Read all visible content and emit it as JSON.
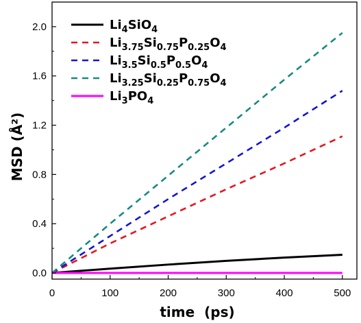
{
  "chart_data": {
    "type": "line",
    "xlabel": "time  (ps)",
    "ylabel": "MSD (Å²)",
    "xlim": [
      0,
      525
    ],
    "ylim": [
      -0.05,
      2.2
    ],
    "xticks": [
      0,
      100,
      200,
      300,
      400,
      500
    ],
    "yticks": [
      0.0,
      0.4,
      0.8,
      1.2,
      1.6,
      2.0
    ],
    "ytick_labels": [
      "0.0",
      "0.4",
      "0.8",
      "1.2",
      "1.6",
      "2.0"
    ],
    "grid": false,
    "legend_position": "top-left",
    "series": [
      {
        "name": "Li₄SiO₄",
        "legend_parts": [
          [
            "Li",
            ""
          ],
          [
            "4",
            "sub"
          ],
          [
            "SiO",
            ""
          ],
          [
            "4",
            "sub"
          ]
        ],
        "color": "#000000",
        "style": "solid",
        "x": [
          0,
          100,
          200,
          300,
          400,
          500
        ],
        "y": [
          0.0,
          0.035,
          0.068,
          0.098,
          0.125,
          0.148
        ]
      },
      {
        "name": "Li₃.₇₅Si₀.₇₅P₀.₂₅O₄",
        "legend_parts": [
          [
            "Li",
            ""
          ],
          [
            "3.75",
            "sub"
          ],
          [
            "Si",
            ""
          ],
          [
            "0.75",
            "sub"
          ],
          [
            "P",
            ""
          ],
          [
            "0.25",
            "sub"
          ],
          [
            "O",
            ""
          ],
          [
            "4",
            "sub"
          ]
        ],
        "color": "#e8141e",
        "style": "dashed",
        "x": [
          0,
          100,
          200,
          300,
          400,
          500
        ],
        "y": [
          0.0,
          0.24,
          0.46,
          0.68,
          0.89,
          1.11
        ]
      },
      {
        "name": "Li₃.₅Si₀.₅P₀.₅O₄",
        "legend_parts": [
          [
            "Li",
            ""
          ],
          [
            "3.5",
            "sub"
          ],
          [
            "Si",
            ""
          ],
          [
            "0.5",
            "sub"
          ],
          [
            "P",
            ""
          ],
          [
            "0.5",
            "sub"
          ],
          [
            "O",
            ""
          ],
          [
            "4",
            "sub"
          ]
        ],
        "color": "#1414d2",
        "style": "dashed",
        "x": [
          0,
          100,
          200,
          300,
          400,
          500
        ],
        "y": [
          0.0,
          0.3,
          0.6,
          0.89,
          1.18,
          1.48
        ]
      },
      {
        "name": "Li₃.₂₅Si₀.₂₅P₀.₇₅O₄",
        "legend_parts": [
          [
            "Li",
            ""
          ],
          [
            "3.25",
            "sub"
          ],
          [
            "Si",
            ""
          ],
          [
            "0.25",
            "sub"
          ],
          [
            "P",
            ""
          ],
          [
            "0.75",
            "sub"
          ],
          [
            "O",
            ""
          ],
          [
            "4",
            "sub"
          ]
        ],
        "color": "#168a82",
        "style": "dashed",
        "x": [
          0,
          100,
          200,
          300,
          400,
          500
        ],
        "y": [
          0.0,
          0.4,
          0.79,
          1.18,
          1.57,
          1.95
        ]
      },
      {
        "name": "Li₃PO₄",
        "legend_parts": [
          [
            "Li",
            ""
          ],
          [
            "3",
            "sub"
          ],
          [
            "PO",
            ""
          ],
          [
            "4",
            "sub"
          ]
        ],
        "color": "#ff00ff",
        "style": "solid",
        "x": [
          0,
          100,
          200,
          300,
          400,
          500
        ],
        "y": [
          0.0,
          0.0,
          0.0,
          0.0,
          0.0,
          0.0
        ]
      }
    ]
  }
}
